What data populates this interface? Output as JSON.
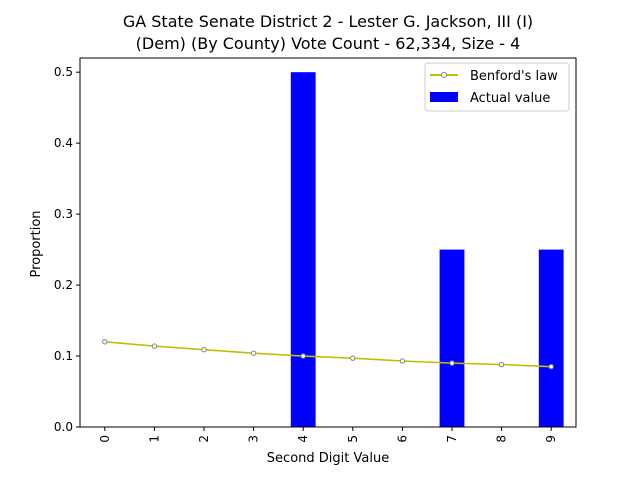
{
  "chart_data": {
    "type": "bar",
    "title_lines": [
      "GA State Senate District 2 - Lester G. Jackson, III (I)",
      "(Dem) (By County) Vote Count - 62,334, Size - 4"
    ],
    "xlabel": "Second Digit Value",
    "ylabel": "Proportion",
    "categories": [
      "0",
      "1",
      "2",
      "3",
      "4",
      "5",
      "6",
      "7",
      "8",
      "9"
    ],
    "ylim": [
      0,
      0.52
    ],
    "yticks": [
      "0.0",
      "0.1",
      "0.2",
      "0.3",
      "0.4",
      "0.5"
    ],
    "grid": false,
    "legend_position": "top-right",
    "series": [
      {
        "name": "Benford's law",
        "kind": "line",
        "color": "#bfbf00",
        "values": [
          0.12,
          0.114,
          0.109,
          0.104,
          0.1,
          0.097,
          0.093,
          0.09,
          0.088,
          0.085
        ]
      },
      {
        "name": "Actual value",
        "kind": "bar",
        "color": "#0000ff",
        "values": [
          0,
          0,
          0,
          0,
          0.5,
          0,
          0,
          0.25,
          0,
          0.25
        ]
      }
    ]
  }
}
